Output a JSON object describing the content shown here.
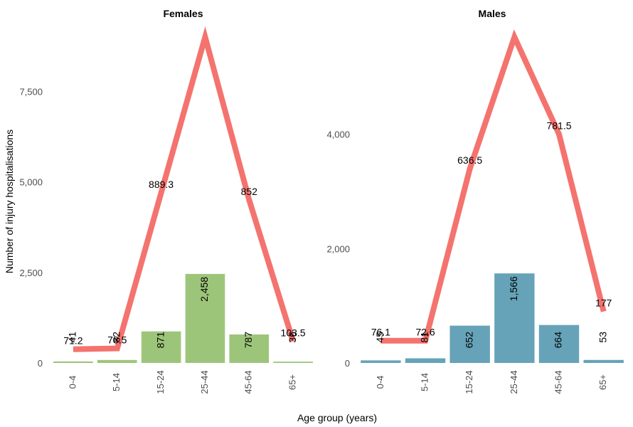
{
  "figure": {
    "ylabel": "Number of injury hospitalisations",
    "xlabel": "Age group (years)"
  },
  "chart_data": [
    {
      "type": "bar",
      "title": "Females",
      "categories": [
        "0-4",
        "5-14",
        "15-24",
        "25-44",
        "45-64",
        "65+"
      ],
      "bar_values": [
        41,
        82,
        871,
        2458,
        787,
        36
      ],
      "bar_labels": [
        "41",
        "82",
        "871",
        "2,458",
        "787",
        "36"
      ],
      "bar_color": "#9dc57a",
      "line_values": [
        380,
        400,
        4700,
        9000,
        4500,
        600
      ],
      "line_labels": [
        "71.2",
        "78.5",
        "889.3",
        "",
        "852",
        "103.5"
      ],
      "line_color": "#f4736e",
      "ylim": [
        0,
        9000
      ],
      "yticks": [
        0,
        2500,
        5000,
        7500
      ],
      "ytick_labels": [
        "0",
        "2,500",
        "5,000",
        "7,500"
      ]
    },
    {
      "type": "bar",
      "title": "Males",
      "categories": [
        "0-4",
        "5-14",
        "15-24",
        "25-44",
        "45-64",
        "65+"
      ],
      "bar_values": [
        45,
        81,
        652,
        1566,
        664,
        53
      ],
      "bar_labels": [
        "45",
        "81",
        "652",
        "1,566",
        "664",
        "53"
      ],
      "bar_color": "#66a3b8",
      "line_values": [
        390,
        390,
        3400,
        5700,
        4000,
        900
      ],
      "line_labels": [
        "76.1",
        "72.6",
        "636.5",
        "",
        "781.5",
        "177"
      ],
      "line_color": "#f4736e",
      "ylim": [
        0,
        5700
      ],
      "yticks": [
        0,
        2000,
        4000
      ],
      "ytick_labels": [
        "0",
        "2,000",
        "4,000"
      ]
    }
  ]
}
